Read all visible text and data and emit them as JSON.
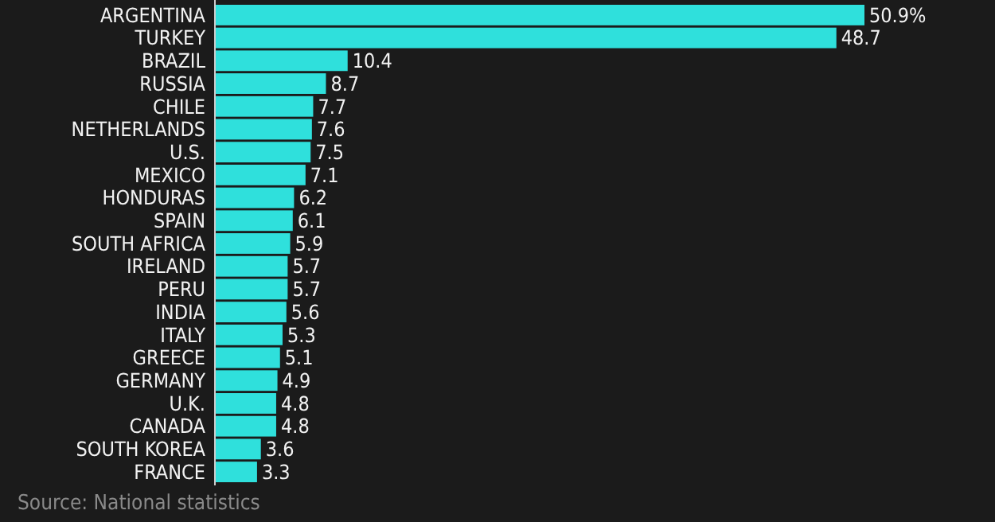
{
  "chart_data": {
    "type": "bar",
    "orientation": "horizontal",
    "relative": false,
    "categories": [
      "ARGENTINA",
      "TURKEY",
      "BRAZIL",
      "RUSSIA",
      "CHILE",
      "NETHERLANDS",
      "U.S.",
      "MEXICO",
      "HONDURAS",
      "SPAIN",
      "SOUTH AFRICA",
      "IRELAND",
      "PERU",
      "INDIA",
      "ITALY",
      "GREECE",
      "GERMANY",
      "U.K.",
      "CANADA",
      "SOUTH KOREA",
      "FRANCE"
    ],
    "values": [
      50.9,
      48.7,
      10.4,
      8.7,
      7.7,
      7.6,
      7.5,
      7.1,
      6.2,
      6.1,
      5.9,
      5.7,
      5.7,
      5.6,
      5.3,
      5.1,
      4.9,
      4.8,
      4.8,
      3.6,
      3.3
    ],
    "value_labels": [
      "50.9%",
      "48.7",
      "10.4",
      "8.7",
      "7.7",
      "7.6",
      "7.5",
      "7.1",
      "6.2",
      "6.1",
      "5.9",
      "5.7",
      "5.7",
      "5.6",
      "5.3",
      "5.1",
      "4.9",
      "4.8",
      "4.8",
      "3.6",
      "3.3"
    ],
    "color": "#2fe0dc",
    "annotations": [
      "Source: National statistics"
    ]
  }
}
